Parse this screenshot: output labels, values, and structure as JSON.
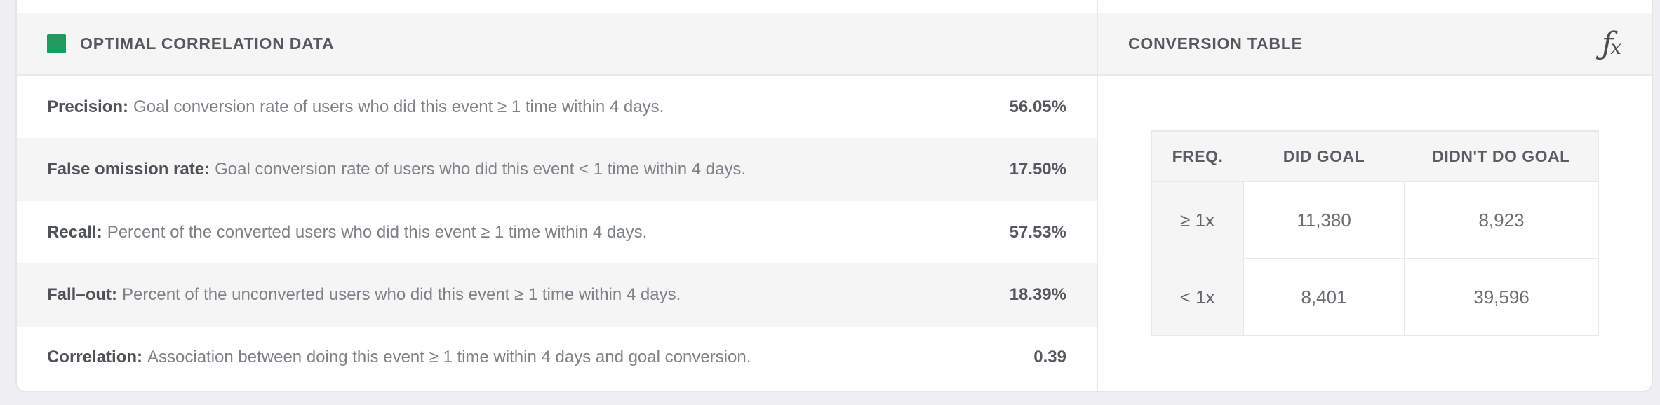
{
  "colors": {
    "legend_green": "#1f9b60",
    "stripe_gray": "#f5f5f6",
    "border_gray": "#e8e9eb",
    "page_background": "#efeff1"
  },
  "left_panel": {
    "title": "OPTIMAL CORRELATION DATA",
    "rows": [
      {
        "label": "Precision:",
        "description": "Goal conversion rate of users who did this event ≥ 1 time within 4 days.",
        "value": "56.05%"
      },
      {
        "label": "False omission rate:",
        "description": "Goal conversion rate of users who did this event < 1 time within 4 days.",
        "value": "17.50%"
      },
      {
        "label": "Recall:",
        "description": "Percent of the converted users who did this event ≥ 1 time within 4 days.",
        "value": "57.53%"
      },
      {
        "label": "Fall–out:",
        "description": "Percent of the unconverted users who did this event ≥ 1 time within 4 days.",
        "value": "18.39%"
      },
      {
        "label": "Correlation:",
        "description": "Association between doing this event ≥ 1 time within 4 days and goal conversion.",
        "value": "0.39"
      }
    ]
  },
  "right_panel": {
    "title": "CONVERSION TABLE",
    "icons": {
      "formula_f": "ƒ",
      "formula_x": "x"
    },
    "table": {
      "headers": [
        "FREQ.",
        "DID GOAL",
        "DIDN'T DO GOAL"
      ],
      "rows": [
        {
          "freq": "≥ 1x",
          "did_goal": "11,380",
          "didnt_do_goal": "8,923"
        },
        {
          "freq": "< 1x",
          "did_goal": "8,401",
          "didnt_do_goal": "39,596"
        }
      ]
    }
  }
}
